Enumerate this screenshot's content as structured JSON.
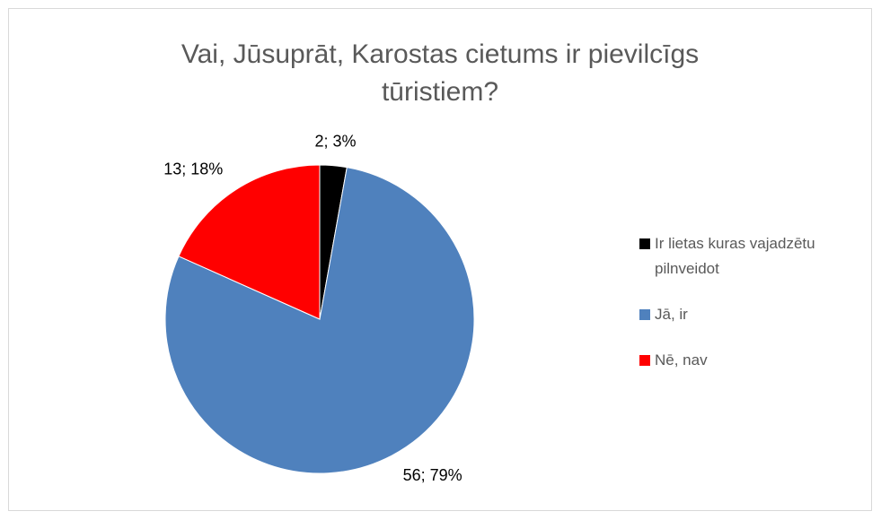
{
  "chart_data": {
    "type": "pie",
    "title": "Vai, Jūsuprāt, Karostas cietums ir pievilcīgs tūristiem?",
    "categories": [
      "Ir lietas kuras vajadzētu pilnveidot",
      "Jā, ir",
      "Nē, nav"
    ],
    "values": [
      2,
      56,
      13
    ],
    "value_labels": [
      "2; 3%",
      "56; 79%",
      "13; 18%"
    ],
    "colors": [
      "#000000",
      "#4f81bd",
      "#ff0000"
    ],
    "legend": "right"
  }
}
